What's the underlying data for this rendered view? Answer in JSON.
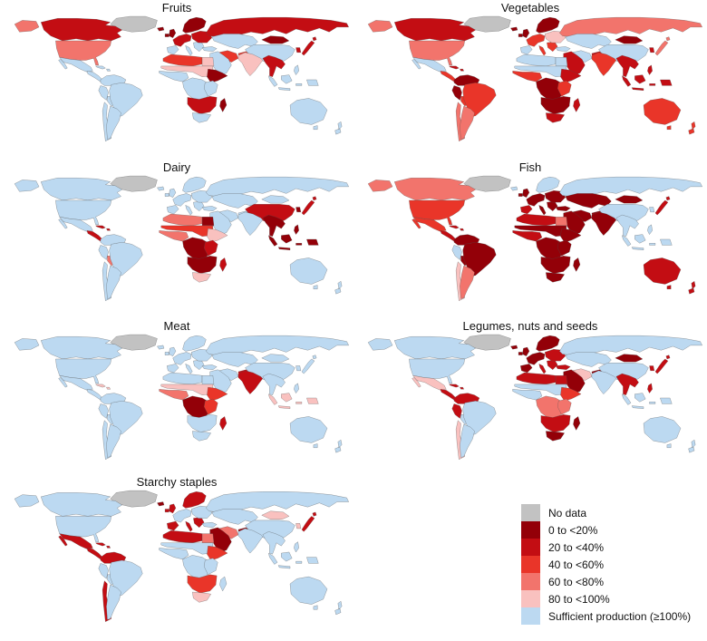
{
  "figure": {
    "background": "#ffffff",
    "border_color": "#4d4d4d"
  },
  "legend": {
    "title": "",
    "position": "bottom-right"
  },
  "chart_data": {
    "type": "heatmap",
    "subtype": "choropleth-world-maps-small-multiples",
    "legend_entries": [
      "No data",
      "0 to <20%",
      "20 to <40%",
      "40 to <60%",
      "60 to <80%",
      "80 to <100%",
      "Sufficient production (≥100%)"
    ],
    "categories": [
      {
        "key": "nd",
        "label": "No data",
        "color": "#c2c2c2"
      },
      {
        "key": "c1",
        "label": "0 to <20%",
        "color": "#930008"
      },
      {
        "key": "c2",
        "label": "20 to <40%",
        "color": "#c30d13"
      },
      {
        "key": "c3",
        "label": "40 to <60%",
        "color": "#e93529"
      },
      {
        "key": "c4",
        "label": "60 to <80%",
        "color": "#f2746c"
      },
      {
        "key": "c5",
        "label": "80 to <100%",
        "color": "#f9c1bf"
      },
      {
        "key": "ok",
        "label": "Sufficient production (≥100%)",
        "color": "#bcd9f1"
      }
    ],
    "maps": [
      {
        "title": "Fruits",
        "regions": {
          "greenland": "nd",
          "iceland": "c1",
          "alaska": "c4",
          "canada": "c2",
          "usa": "c4",
          "mexico": "ok",
          "central_america": "ok",
          "caribbean": "ok",
          "colombia_venezuela": "ok",
          "peru": "ok",
          "bolivia": "ok",
          "brazil": "ok",
          "chile": "ok",
          "argentina": "ok",
          "uk_ireland": "c1",
          "scandinavia": "c1",
          "west_europe": "c2",
          "iberia": "ok",
          "balkans_italy": "ok",
          "east_europe": "c2",
          "russia": "c2",
          "turkey": "ok",
          "middle_east": "ok",
          "iran": "c3",
          "afghanistan": "c3",
          "central_asia": "ok",
          "mongolia": "c1",
          "china": "ok",
          "korea": "c2",
          "japan": "c2",
          "india": "c5",
          "southeast_asia": "c2",
          "indonesia": "ok",
          "philippines": "ok",
          "north_africa": "c3",
          "egypt": "c5",
          "sahel": "c5",
          "west_africa": "ok",
          "central_africa": "ok",
          "horn_africa": "c1",
          "east_africa": "ok",
          "southern_africa": "c2",
          "south_africa": "ok",
          "madagascar": "c1",
          "australia": "ok",
          "new_zealand": "ok"
        }
      },
      {
        "title": "Vegetables",
        "regions": {
          "greenland": "nd",
          "iceland": "c1",
          "alaska": "c4",
          "canada": "c2",
          "usa": "c4",
          "mexico": "ok",
          "central_america": "c3",
          "caribbean": "c2",
          "colombia_venezuela": "c1",
          "peru": "c1",
          "bolivia": "c3",
          "brazil": "c3",
          "chile": "c4",
          "argentina": "c4",
          "uk_ireland": "c1",
          "scandinavia": "c1",
          "west_europe": "c3",
          "iberia": "ok",
          "balkans_italy": "c3",
          "east_europe": "c5",
          "russia": "c4",
          "turkey": "ok",
          "middle_east": "c2",
          "iran": "ok",
          "afghanistan": "c2",
          "central_asia": "ok",
          "mongolia": "c1",
          "china": "ok",
          "korea": "c2",
          "japan": "c4",
          "india": "c3",
          "southeast_asia": "c2",
          "indonesia": "c2",
          "philippines": "c2",
          "north_africa": "ok",
          "egypt": "ok",
          "sahel": "ok",
          "west_africa": "c3",
          "central_africa": "c1",
          "horn_africa": "c2",
          "east_africa": "c3",
          "southern_africa": "c1",
          "south_africa": "c2",
          "madagascar": "c2",
          "australia": "c3",
          "new_zealand": "c3"
        }
      },
      {
        "title": "Dairy",
        "regions": {
          "greenland": "nd",
          "iceland": "ok",
          "alaska": "ok",
          "canada": "ok",
          "usa": "ok",
          "mexico": "ok",
          "central_america": "c2",
          "caribbean": "c2",
          "colombia_venezuela": "ok",
          "peru": "ok",
          "bolivia": "c4",
          "brazil": "ok",
          "chile": "ok",
          "argentina": "ok",
          "uk_ireland": "ok",
          "scandinavia": "ok",
          "west_europe": "ok",
          "iberia": "ok",
          "balkans_italy": "ok",
          "east_europe": "ok",
          "russia": "ok",
          "turkey": "ok",
          "middle_east": "ok",
          "iran": "ok",
          "afghanistan": "ok",
          "central_asia": "ok",
          "mongolia": "ok",
          "china": "c2",
          "korea": "c1",
          "japan": "c2",
          "india": "ok",
          "southeast_asia": "c1",
          "indonesia": "c1",
          "philippines": "c1",
          "north_africa": "c4",
          "egypt": "c1",
          "sahel": "c3",
          "west_africa": "c4",
          "central_africa": "c1",
          "horn_africa": "c5",
          "east_africa": "c2",
          "southern_africa": "c1",
          "south_africa": "c5",
          "madagascar": "c2",
          "australia": "ok",
          "new_zealand": "ok"
        }
      },
      {
        "title": "Fish",
        "regions": {
          "greenland": "nd",
          "iceland": "ok",
          "alaska": "c4",
          "canada": "c4",
          "usa": "c3",
          "mexico": "c3",
          "central_america": "c2",
          "caribbean": "c2",
          "colombia_venezuela": "c1",
          "peru": "ok",
          "bolivia": "c1",
          "brazil": "c1",
          "chile": "c5",
          "argentina": "c4",
          "uk_ireland": "c1",
          "scandinavia": "ok",
          "west_europe": "c1",
          "iberia": "c2",
          "balkans_italy": "c1",
          "east_europe": "c1",
          "russia": "ok",
          "turkey": "c1",
          "middle_east": "c1",
          "iran": "c1",
          "afghanistan": "c1",
          "central_asia": "c1",
          "mongolia": "c1",
          "china": "ok",
          "korea": "ok",
          "japan": "c2",
          "india": "c1",
          "southeast_asia": "ok",
          "indonesia": "ok",
          "philippines": "ok",
          "north_africa": "c2",
          "egypt": "c4",
          "sahel": "c1",
          "west_africa": "c2",
          "central_africa": "c1",
          "horn_africa": "c1",
          "east_africa": "c1",
          "southern_africa": "c1",
          "south_africa": "c1",
          "madagascar": "c1",
          "australia": "c2",
          "new_zealand": "c2"
        }
      },
      {
        "title": "Meat",
        "regions": {
          "greenland": "nd",
          "iceland": "ok",
          "alaska": "ok",
          "canada": "ok",
          "usa": "ok",
          "mexico": "ok",
          "central_america": "ok",
          "caribbean": "c5",
          "colombia_venezuela": "ok",
          "peru": "ok",
          "bolivia": "ok",
          "brazil": "ok",
          "chile": "ok",
          "argentina": "ok",
          "uk_ireland": "ok",
          "scandinavia": "ok",
          "west_europe": "ok",
          "iberia": "ok",
          "balkans_italy": "ok",
          "east_europe": "ok",
          "russia": "ok",
          "turkey": "ok",
          "middle_east": "ok",
          "iran": "ok",
          "afghanistan": "c2",
          "central_asia": "ok",
          "mongolia": "ok",
          "china": "ok",
          "korea": "ok",
          "japan": "ok",
          "india": "c2",
          "southeast_asia": "ok",
          "indonesia": "c5",
          "philippines": "ok",
          "north_africa": "ok",
          "egypt": "ok",
          "sahel": "c5",
          "west_africa": "c4",
          "central_africa": "c1",
          "horn_africa": "c3",
          "east_africa": "c3",
          "southern_africa": "ok",
          "south_africa": "ok",
          "madagascar": "c2",
          "australia": "ok",
          "new_zealand": "ok"
        }
      },
      {
        "title": "Legumes, nuts and seeds",
        "regions": {
          "greenland": "nd",
          "iceland": "c1",
          "alaska": "ok",
          "canada": "ok",
          "usa": "ok",
          "mexico": "c5",
          "central_america": "c2",
          "caribbean": "c2",
          "colombia_venezuela": "c2",
          "peru": "c2",
          "bolivia": "ok",
          "brazil": "ok",
          "chile": "c5",
          "argentina": "ok",
          "uk_ireland": "c1",
          "scandinavia": "c1",
          "west_europe": "c1",
          "iberia": "c1",
          "balkans_italy": "c2",
          "east_europe": "c2",
          "russia": "ok",
          "turkey": "c2",
          "middle_east": "c1",
          "iran": "c5",
          "afghanistan": "c1",
          "central_asia": "ok",
          "mongolia": "c1",
          "china": "ok",
          "korea": "c2",
          "japan": "c2",
          "india": "ok",
          "southeast_asia": "c2",
          "indonesia": "ok",
          "philippines": "c2",
          "north_africa": "c2",
          "egypt": "c2",
          "sahel": "ok",
          "west_africa": "ok",
          "central_africa": "c4",
          "horn_africa": "c3",
          "east_africa": "c4",
          "southern_africa": "c2",
          "south_africa": "c1",
          "madagascar": "c1",
          "australia": "ok",
          "new_zealand": "ok"
        }
      },
      {
        "title": "Starchy staples",
        "regions": {
          "greenland": "nd",
          "iceland": "c1",
          "alaska": "ok",
          "canada": "ok",
          "usa": "ok",
          "mexico": "c2",
          "central_america": "c2",
          "caribbean": "c2",
          "colombia_venezuela": "c2",
          "peru": "ok",
          "bolivia": "ok",
          "brazil": "ok",
          "chile": "c2",
          "argentina": "ok",
          "uk_ireland": "c2",
          "scandinavia": "c2",
          "west_europe": "ok",
          "iberia": "c2",
          "balkans_italy": "c2",
          "east_europe": "ok",
          "russia": "ok",
          "turkey": "ok",
          "middle_east": "c1",
          "iran": "c4",
          "afghanistan": "c1",
          "central_asia": "ok",
          "mongolia": "c5",
          "china": "ok",
          "korea": "c5",
          "japan": "c2",
          "india": "ok",
          "southeast_asia": "ok",
          "indonesia": "ok",
          "philippines": "ok",
          "north_africa": "c2",
          "egypt": "c4",
          "sahel": "ok",
          "west_africa": "ok",
          "central_africa": "ok",
          "horn_africa": "c3",
          "east_africa": "ok",
          "southern_africa": "c3",
          "south_africa": "c5",
          "madagascar": "ok",
          "australia": "ok",
          "new_zealand": "ok"
        }
      }
    ]
  }
}
